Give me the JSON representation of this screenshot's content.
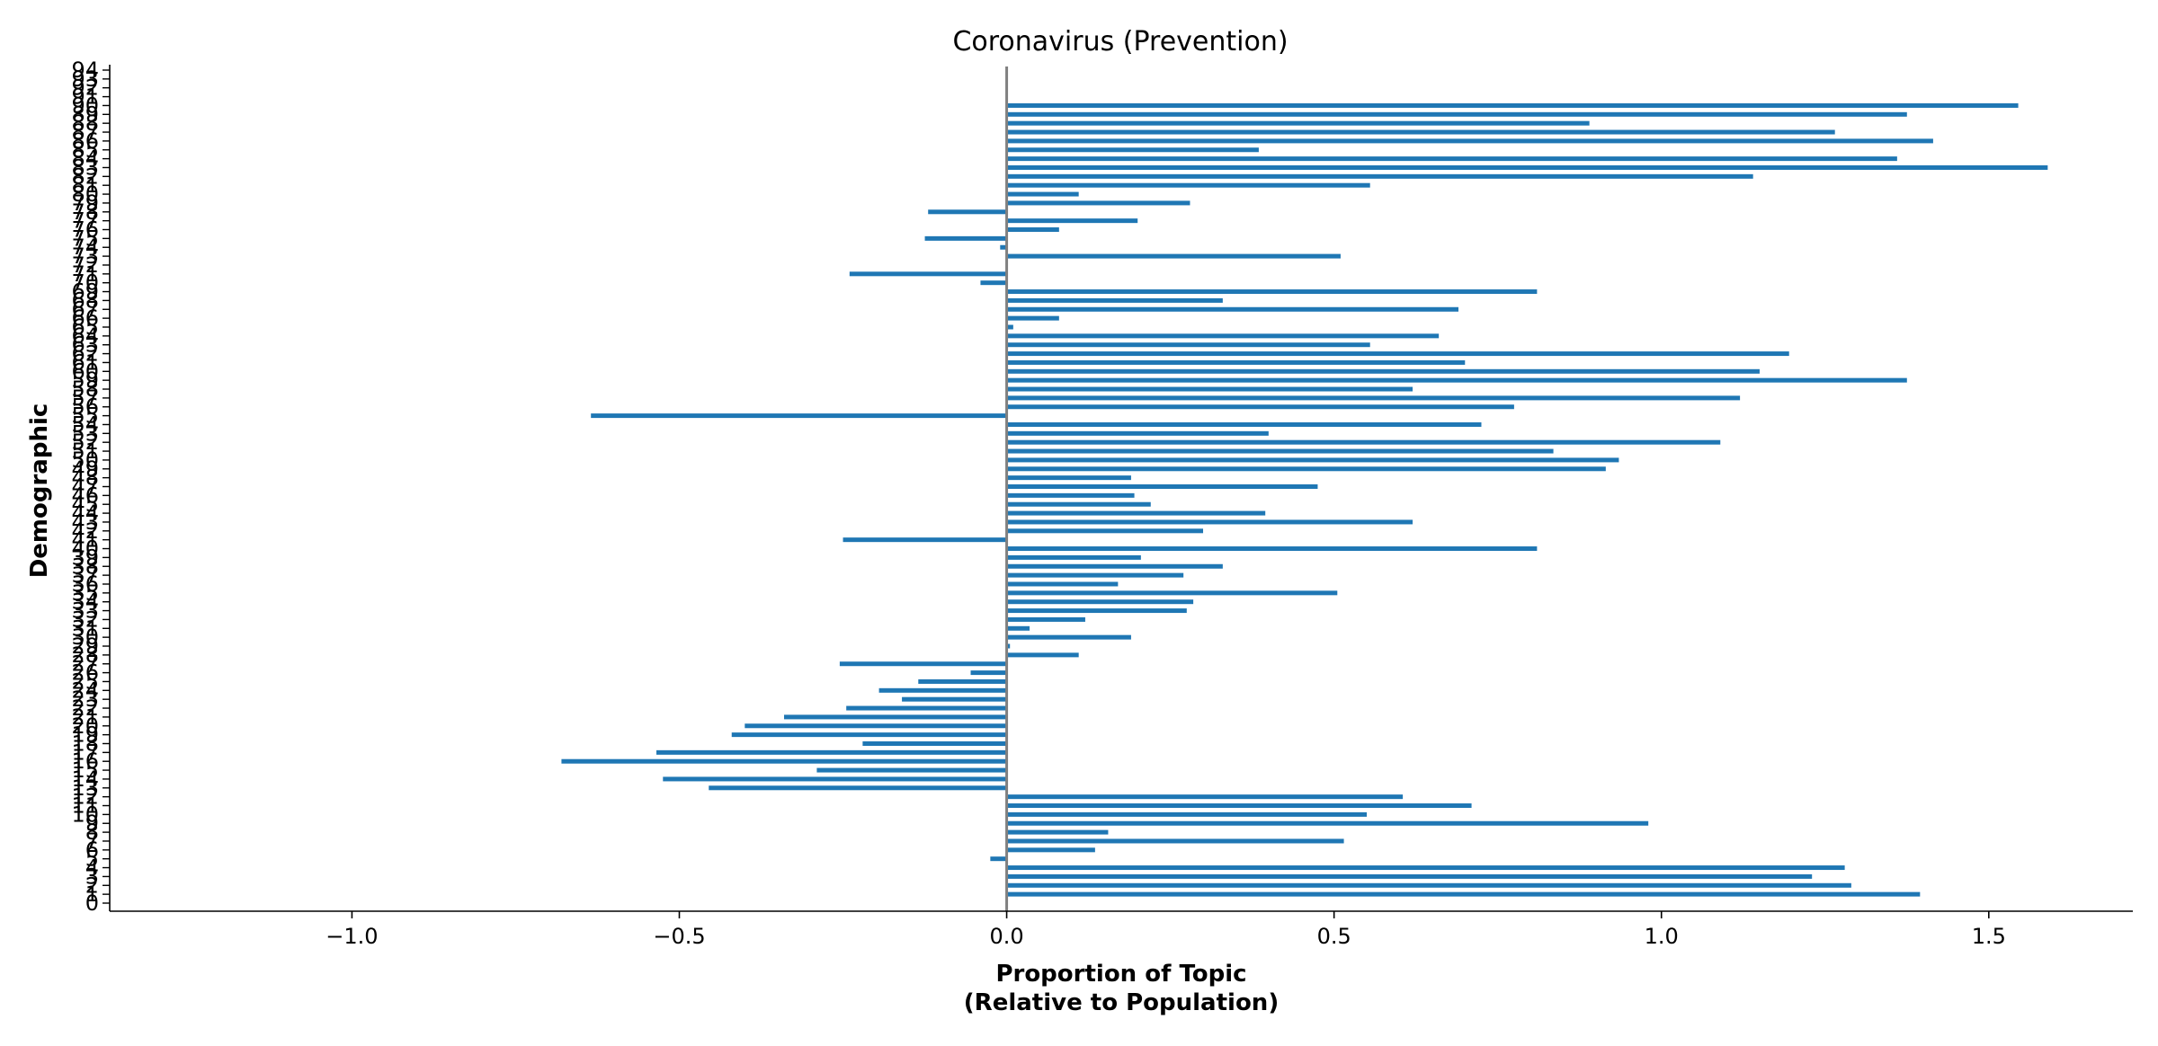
{
  "chart_data": {
    "type": "bar",
    "orientation": "horizontal",
    "title": "Coronavirus (Prevention)",
    "xlabel": "Proportion of Topic\n(Relative to Population)",
    "ylabel": "Demographic",
    "xlim": [
      -1.37,
      1.72
    ],
    "xticks": [
      -1.0,
      -0.5,
      0.0,
      0.5,
      1.0,
      1.5
    ],
    "xtick_labels": [
      "−1.0",
      "−0.5",
      "0.0",
      "0.5",
      "1.0",
      "1.5"
    ],
    "categories": [
      "0",
      "1",
      "2",
      "3",
      "4",
      "5",
      "6",
      "7",
      "8",
      "9",
      "10",
      "11",
      "12",
      "13",
      "14",
      "15",
      "16",
      "17",
      "18",
      "19",
      "20",
      "21",
      "22",
      "23",
      "24",
      "25",
      "26",
      "27",
      "28",
      "29",
      "30",
      "31",
      "32",
      "33",
      "34",
      "35",
      "36",
      "37",
      "38",
      "39",
      "40",
      "41",
      "42",
      "43",
      "44",
      "45",
      "46",
      "47",
      "48",
      "49",
      "50",
      "51",
      "52",
      "53",
      "54",
      "55",
      "56",
      "57",
      "58",
      "59",
      "60",
      "61",
      "62",
      "63",
      "64",
      "65",
      "66",
      "67",
      "68",
      "69",
      "70",
      "71",
      "72",
      "73",
      "74",
      "75",
      "76",
      "77",
      "78",
      "79",
      "80",
      "81",
      "82",
      "83",
      "84",
      "85",
      "86",
      "87",
      "88",
      "89",
      "90",
      "91",
      "92",
      "93",
      "94"
    ],
    "values": [
      0,
      1.395,
      1.29,
      1.23,
      1.28,
      -0.025,
      0.135,
      0.515,
      0.155,
      0.98,
      0.55,
      0.71,
      0.605,
      -0.455,
      -0.525,
      -0.29,
      -0.68,
      -0.535,
      -0.22,
      -0.42,
      -0.4,
      -0.34,
      -0.245,
      -0.16,
      -0.195,
      -0.135,
      -0.055,
      -0.255,
      0.11,
      0.005,
      0.19,
      0.035,
      0.12,
      0.275,
      0.285,
      0.505,
      0.17,
      0.27,
      0.33,
      0.205,
      0.81,
      -0.25,
      0.3,
      0.62,
      0.395,
      0.22,
      0.195,
      0.475,
      0.19,
      0.915,
      0.935,
      0.835,
      1.09,
      0.4,
      0.725,
      -0.635,
      0.775,
      1.12,
      0.62,
      1.375,
      1.15,
      0.7,
      1.195,
      0.555,
      0.66,
      0.01,
      0.08,
      0.69,
      0.33,
      0.81,
      -0.04,
      -0.24,
      0,
      0.51,
      -0.01,
      -0.125,
      0.08,
      0.2,
      -0.12,
      0.28,
      0.11,
      0.555,
      1.14,
      1.59,
      1.36,
      0.385,
      1.415,
      1.265,
      0.89,
      1.375,
      1.545,
      0,
      0,
      0,
      0
    ],
    "bar_color": "#1f77b4",
    "zero_line_color": "#808080",
    "grid": false,
    "legend": "none"
  }
}
